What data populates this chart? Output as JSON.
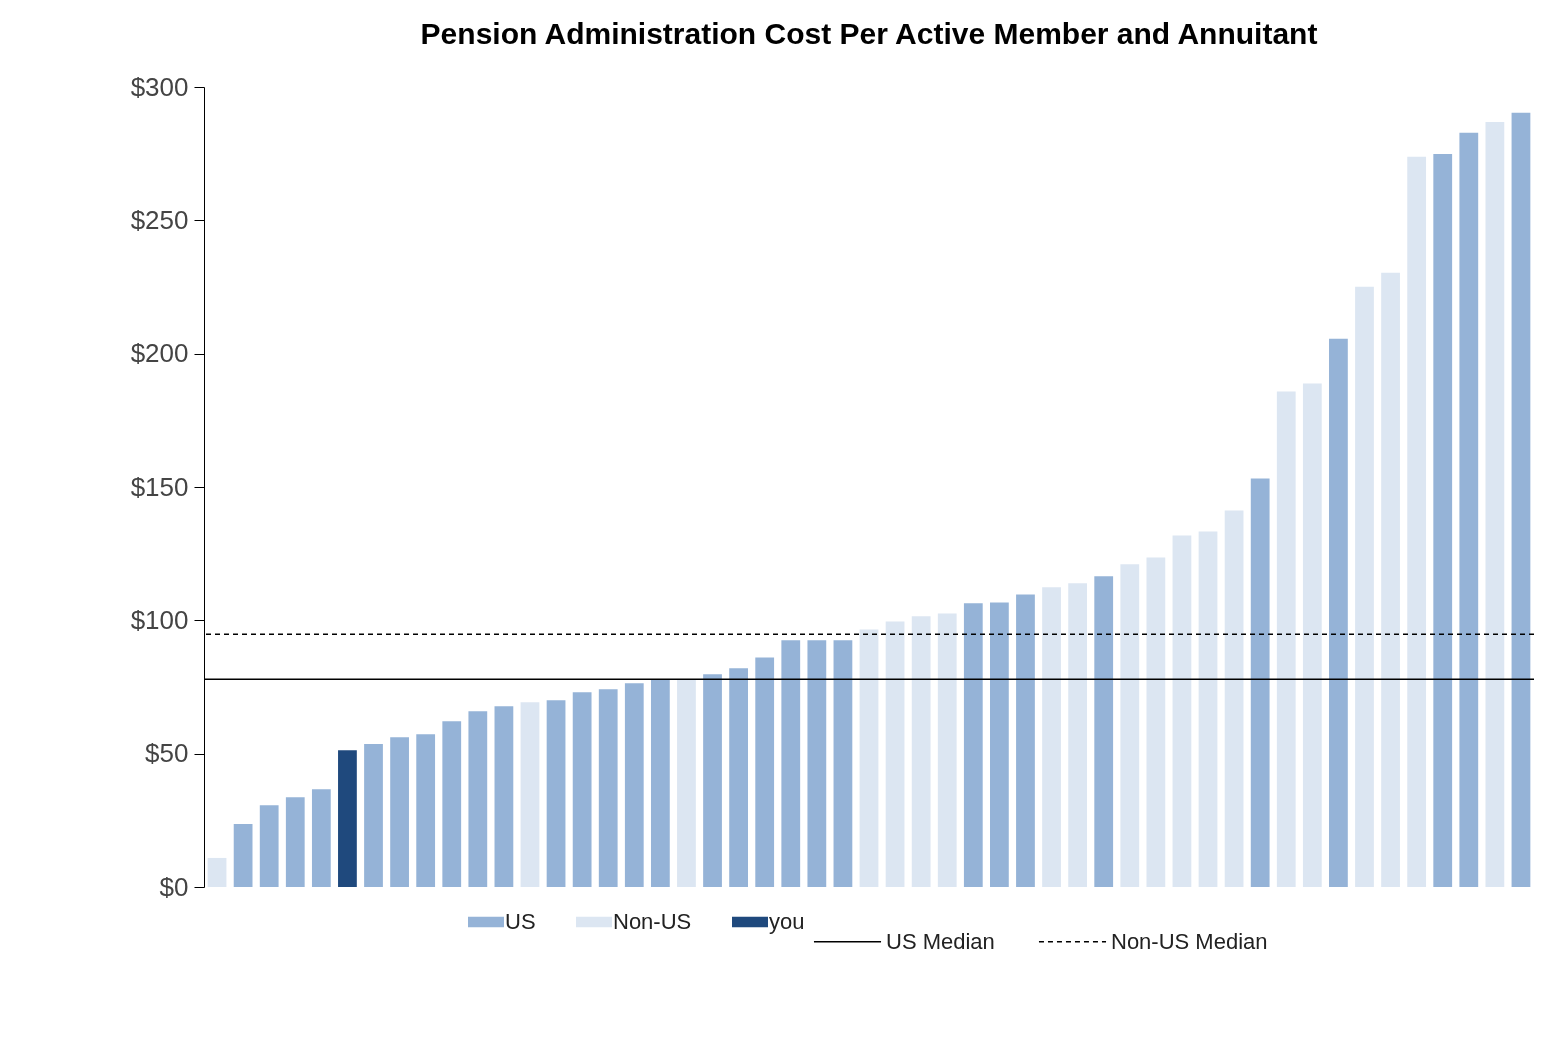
{
  "chart_data": {
    "type": "bar",
    "title": "Pension Administration Cost Per Active Member and Annuitant",
    "categories": [
      null,
      null,
      null,
      null,
      null,
      null,
      null,
      null,
      null,
      null,
      null,
      null,
      null,
      null,
      null,
      null,
      null,
      null,
      null,
      null,
      null,
      null,
      null,
      null,
      null,
      null,
      null,
      null,
      null,
      null,
      null,
      null,
      null,
      null,
      null,
      null,
      null,
      null,
      null,
      null,
      null,
      null,
      null,
      null,
      null,
      null,
      null,
      null,
      null,
      null,
      null
    ],
    "series": [
      {
        "name": "US",
        "color": "#95b3d7",
        "values": [
          null,
          23.6,
          30.7,
          33.7,
          36.7,
          null,
          53.6,
          56.2,
          57.3,
          62.2,
          65.9,
          67.8,
          null,
          70,
          73,
          74.2,
          76.4,
          77.9,
          null,
          79.8,
          82,
          86.1,
          92.5,
          92.5,
          92.5,
          null,
          null,
          null,
          null,
          106.4,
          106.7,
          109.7,
          null,
          null,
          116.5,
          null,
          null,
          null,
          null,
          null,
          153.2,
          null,
          null,
          205.6,
          null,
          null,
          null,
          274.9,
          282.8,
          null,
          290.3
        ]
      },
      {
        "name": "Non-US",
        "color": "#dce6f2",
        "values": [
          10.9,
          null,
          null,
          null,
          null,
          null,
          null,
          null,
          null,
          null,
          null,
          null,
          69.3,
          null,
          null,
          null,
          null,
          null,
          77.9,
          null,
          null,
          null,
          null,
          null,
          null,
          96.6,
          99.6,
          101.5,
          102.6,
          null,
          null,
          null,
          112.4,
          113.9,
          null,
          121,
          123.6,
          131.8,
          133.3,
          141.2,
          null,
          185.8,
          188.8,
          null,
          225.1,
          230.3,
          273.8,
          null,
          null,
          286.9,
          null
        ]
      },
      {
        "name": "you",
        "color": "#1f497d",
        "values": [
          null,
          null,
          null,
          null,
          null,
          51.3,
          null,
          null,
          null,
          null,
          null,
          null,
          null,
          null,
          null,
          null,
          null,
          null,
          null,
          null,
          null,
          null,
          null,
          null,
          null,
          null,
          null,
          null,
          null,
          null,
          null,
          null,
          null,
          null,
          null,
          null,
          null,
          null,
          null,
          null,
          null,
          null,
          null,
          null,
          null,
          null,
          null,
          null,
          null,
          null,
          null
        ]
      }
    ],
    "ylim": [
      0,
      300
    ],
    "yticks": [
      {
        "value": 0,
        "label": "$0"
      },
      {
        "value": 50,
        "label": "$50"
      },
      {
        "value": 100,
        "label": "$100"
      },
      {
        "value": 150,
        "label": "$150"
      },
      {
        "value": 200,
        "label": "$200"
      },
      {
        "value": 250,
        "label": "$250"
      },
      {
        "value": 300,
        "label": "$300"
      }
    ],
    "ref_lines": [
      {
        "axis": "y",
        "value": 77.9,
        "label": "US Median",
        "color": "#000000",
        "line_style": "solid"
      },
      {
        "axis": "y",
        "value": 94.8,
        "label": "Non-US Median",
        "color": "#000000",
        "line_style": "dashed"
      }
    ],
    "grid": false,
    "legend": "bottom"
  }
}
